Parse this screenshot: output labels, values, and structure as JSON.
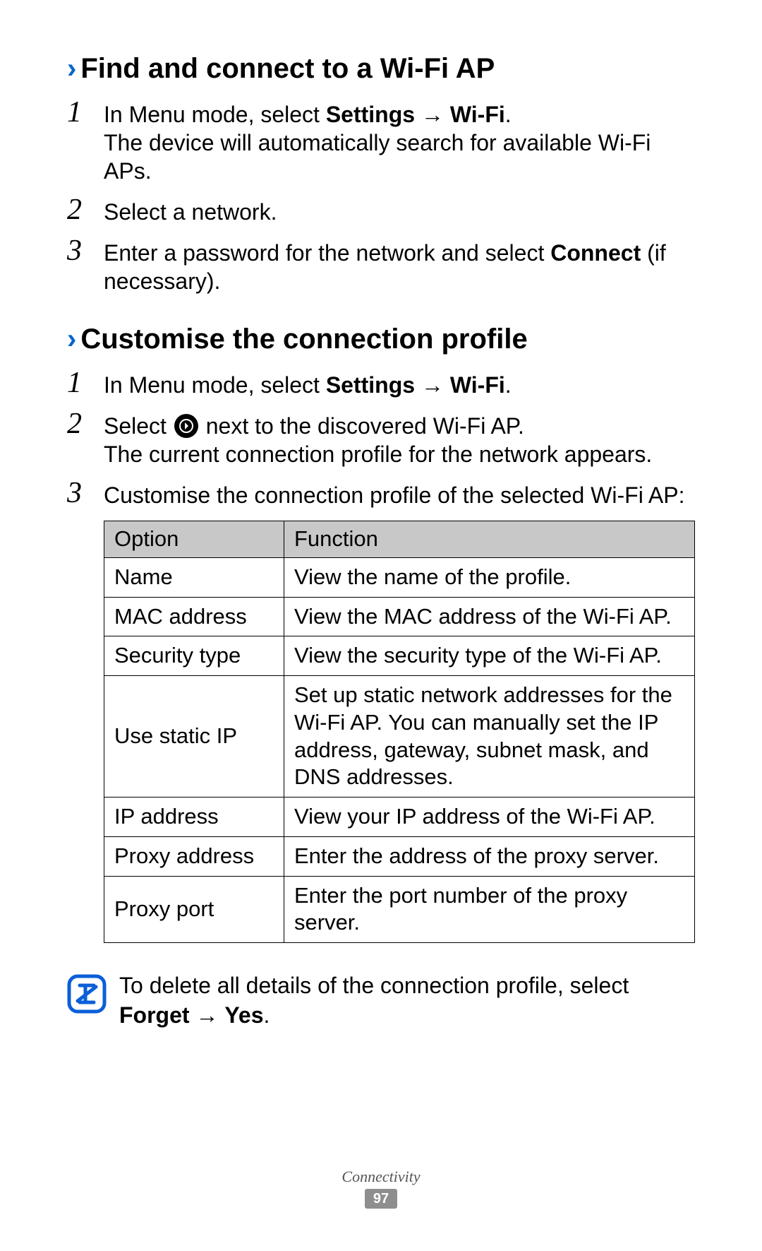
{
  "section1": {
    "title": "Find and connect to a Wi-Fi AP",
    "steps": [
      {
        "num": "1",
        "parts": [
          {
            "t": "In Menu mode, select "
          },
          {
            "t": "Settings",
            "b": true
          },
          {
            "t": " → ",
            "arrow": true
          },
          {
            "t": "Wi-Fi",
            "b": true
          },
          {
            "t": "."
          }
        ],
        "extra": "The device will automatically search for available Wi-Fi APs."
      },
      {
        "num": "2",
        "parts": [
          {
            "t": "Select a network."
          }
        ]
      },
      {
        "num": "3",
        "parts": [
          {
            "t": "Enter a password for the network and select "
          },
          {
            "t": "Connect",
            "b": true
          },
          {
            "t": " (if necessary)."
          }
        ]
      }
    ]
  },
  "section2": {
    "title": "Customise the connection profile",
    "steps": [
      {
        "num": "1",
        "parts": [
          {
            "t": "In Menu mode, select "
          },
          {
            "t": "Settings",
            "b": true
          },
          {
            "t": " → ",
            "arrow": true
          },
          {
            "t": "Wi-Fi",
            "b": true
          },
          {
            "t": "."
          }
        ]
      },
      {
        "num": "2",
        "parts": [
          {
            "t": "Select "
          },
          {
            "icon": "circle-arrow"
          },
          {
            "t": " next to the discovered Wi-Fi AP."
          }
        ],
        "extra": "The current connection profile for the network appears."
      },
      {
        "num": "3",
        "parts": [
          {
            "t": "Customise the connection profile of the selected Wi-Fi AP:"
          }
        ],
        "table": {
          "headers": [
            "Option",
            "Function"
          ],
          "rows": [
            [
              "Name",
              "View the name of the profile."
            ],
            [
              "MAC address",
              "View the MAC address of the Wi-Fi AP."
            ],
            [
              "Security type",
              "View the security type of the Wi-Fi AP."
            ],
            [
              "Use static IP",
              "Set up static network addresses for the Wi-Fi AP. You can manually set the IP address, gateway, subnet mask, and DNS addresses."
            ],
            [
              "IP address",
              "View your IP address of the Wi-Fi AP."
            ],
            [
              "Proxy address",
              "Enter the address of the proxy server."
            ],
            [
              "Proxy port",
              "Enter the port number of the proxy server."
            ]
          ]
        }
      }
    ]
  },
  "note": {
    "parts": [
      {
        "t": "To delete all details of the connection profile, select "
      },
      {
        "t": "Forget",
        "b": true
      },
      {
        "t": " → ",
        "arrow": true
      },
      {
        "t": "Yes",
        "b": true
      },
      {
        "t": "."
      }
    ]
  },
  "footer": {
    "label": "Connectivity",
    "page": "97"
  },
  "colors": {
    "heading_chevron": "#0066cc",
    "note_icon": "#0b5fd8",
    "table_header_bg": "#c8c8c8",
    "page_badge_bg": "#8e8e8e"
  }
}
